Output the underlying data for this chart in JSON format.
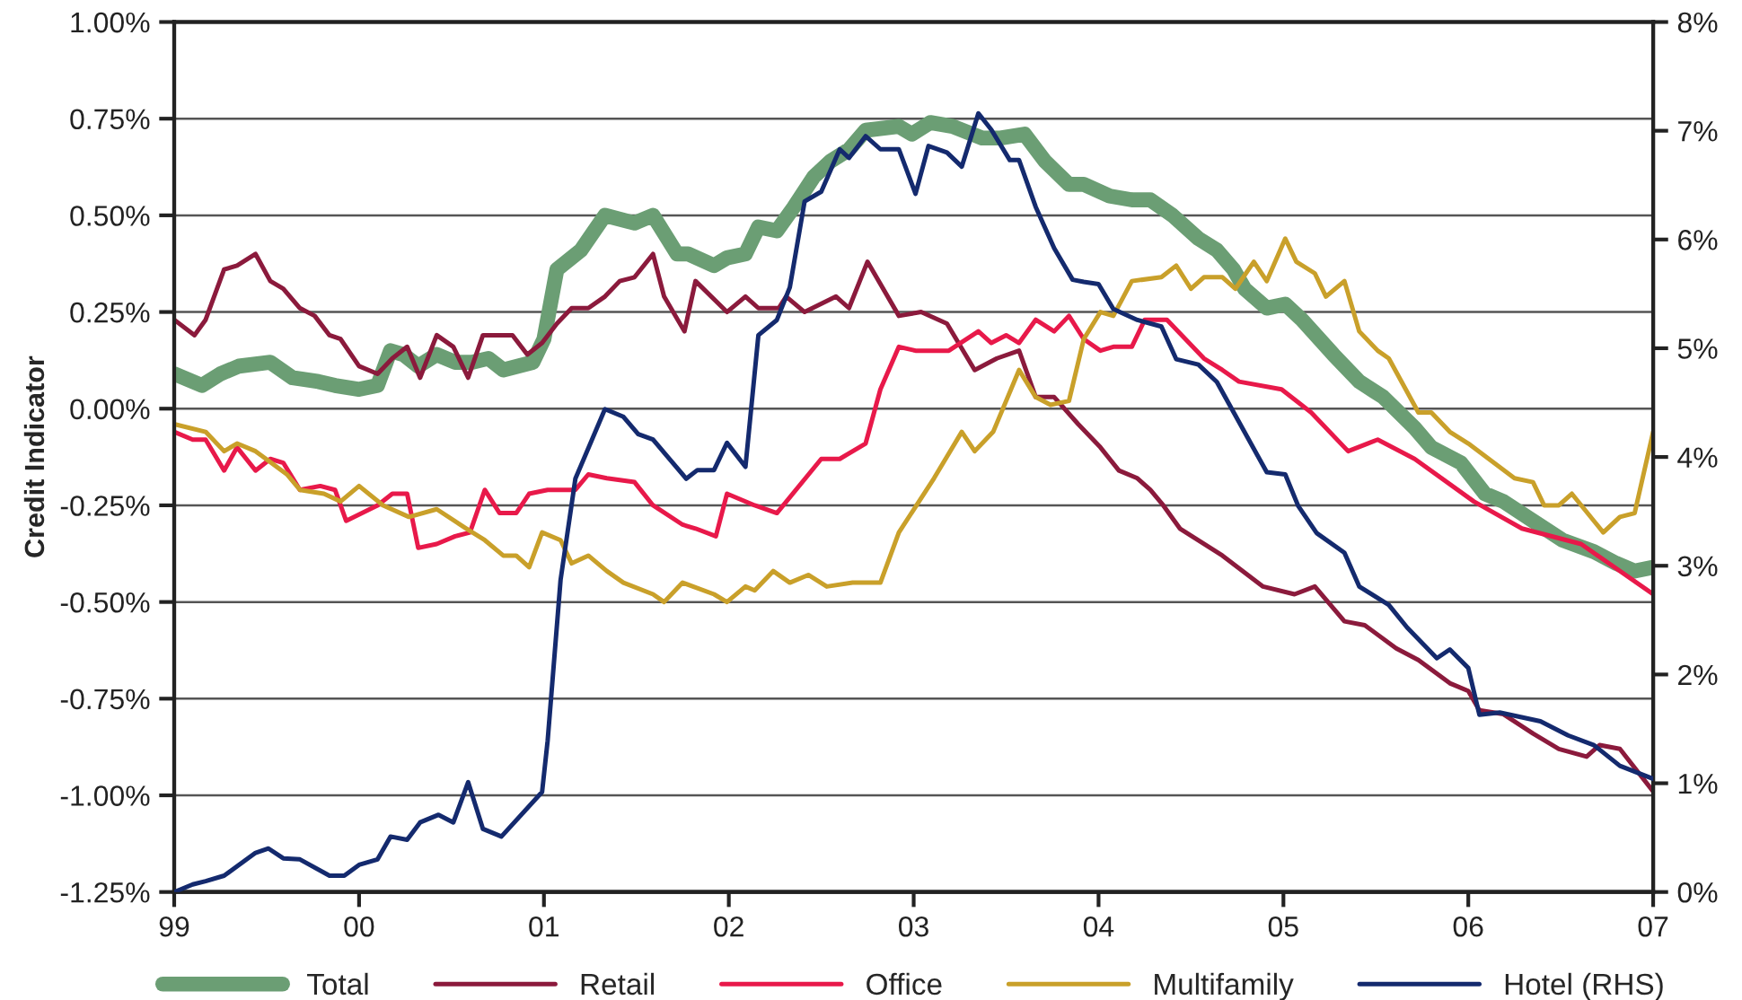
{
  "chart_data": {
    "type": "line",
    "ylabel": "Credit Indicator",
    "xlim": [
      1999,
      2007
    ],
    "xticks": [
      {
        "value": 1999,
        "label": "99"
      },
      {
        "value": 2000,
        "label": "00"
      },
      {
        "value": 2001,
        "label": "01"
      },
      {
        "value": 2002,
        "label": "02"
      },
      {
        "value": 2003,
        "label": "03"
      },
      {
        "value": 2004,
        "label": "04"
      },
      {
        "value": 2005,
        "label": "05"
      },
      {
        "value": 2006,
        "label": "06"
      },
      {
        "value": 2007,
        "label": "07"
      }
    ],
    "ylim": [
      -1.25,
      1.0
    ],
    "yticks": [
      {
        "value": -1.25,
        "label": "-1.25%"
      },
      {
        "value": -1.0,
        "label": "-1.00%"
      },
      {
        "value": -0.75,
        "label": "-0.75%"
      },
      {
        "value": -0.5,
        "label": "-0.50%"
      },
      {
        "value": -0.25,
        "label": "-0.25%"
      },
      {
        "value": 0,
        "label": "0.00%"
      },
      {
        "value": 0.25,
        "label": "0.25%"
      },
      {
        "value": 0.5,
        "label": "0.50%"
      },
      {
        "value": 0.75,
        "label": "0.75%"
      },
      {
        "value": 1.0,
        "label": "1.00%"
      }
    ],
    "y2lim": [
      0,
      8
    ],
    "y2ticks": [
      {
        "value": 0,
        "label": "0%"
      },
      {
        "value": 1,
        "label": "1%"
      },
      {
        "value": 2,
        "label": "2%"
      },
      {
        "value": 3,
        "label": "3%"
      },
      {
        "value": 4,
        "label": "4%"
      },
      {
        "value": 5,
        "label": "5%"
      },
      {
        "value": 6,
        "label": "6%"
      },
      {
        "value": 7,
        "label": "7%"
      },
      {
        "value": 8,
        "label": "8%"
      }
    ],
    "grid": "y",
    "legend": "bottom",
    "line_style": "solid",
    "marker": "none",
    "series": [
      {
        "name": "Total",
        "color": "#6b9e74",
        "x": [
          1999.0,
          1999.15,
          1999.25,
          1999.35,
          1999.52,
          1999.64,
          1999.78,
          1999.87,
          2000.0,
          2000.1,
          2000.17,
          2000.24,
          2000.32,
          2000.42,
          2000.52,
          2000.61,
          2000.7,
          2000.78,
          2000.94,
          2001.0,
          2001.07,
          2001.2,
          2001.33,
          2001.49,
          2001.59,
          2001.72,
          2001.78,
          2001.92,
          2001.99,
          2002.09,
          2002.16,
          2002.26,
          2002.35,
          2002.46,
          2002.55,
          2002.65,
          2002.74,
          2002.92,
          2002.99,
          2003.09,
          2003.21,
          2003.37,
          2003.47,
          2003.6,
          2003.71,
          2003.84,
          2003.92,
          2004.06,
          2004.18,
          2004.28,
          2004.4,
          2004.54,
          2004.64,
          2004.73,
          2004.79,
          2004.91,
          2005.01,
          2005.1,
          2005.27,
          2005.41,
          2005.54,
          2005.71,
          2005.8,
          2005.96,
          2006.09,
          2006.19,
          2006.35,
          2006.51,
          2006.68,
          2006.8,
          2006.9,
          2007.0
        ],
        "values": [
          0.09,
          0.06,
          0.09,
          0.11,
          0.12,
          0.08,
          0.07,
          0.06,
          0.05,
          0.06,
          0.15,
          0.14,
          0.11,
          0.14,
          0.12,
          0.12,
          0.13,
          0.1,
          0.12,
          0.18,
          0.36,
          0.41,
          0.5,
          0.48,
          0.5,
          0.4,
          0.4,
          0.37,
          0.39,
          0.4,
          0.47,
          0.46,
          0.52,
          0.6,
          0.64,
          0.67,
          0.72,
          0.73,
          0.71,
          0.74,
          0.73,
          0.7,
          0.7,
          0.71,
          0.64,
          0.58,
          0.58,
          0.55,
          0.54,
          0.54,
          0.5,
          0.44,
          0.41,
          0.36,
          0.31,
          0.26,
          0.27,
          0.23,
          0.14,
          0.07,
          0.03,
          -0.05,
          -0.1,
          -0.14,
          -0.22,
          -0.24,
          -0.29,
          -0.34,
          -0.37,
          -0.4,
          -0.42,
          -0.41
        ]
      },
      {
        "name": "Retail",
        "color": "#8b1a3c",
        "x": [
          1999.0,
          1999.11,
          1999.17,
          1999.27,
          1999.34,
          1999.44,
          1999.52,
          1999.59,
          1999.68,
          1999.76,
          1999.84,
          1999.9,
          2000.0,
          2000.1,
          2000.18,
          2000.26,
          2000.33,
          2000.42,
          2000.51,
          2000.59,
          2000.67,
          2000.76,
          2000.83,
          2000.91,
          2000.99,
          2001.07,
          2001.15,
          2001.24,
          2001.33,
          2001.41,
          2001.49,
          2001.59,
          2001.65,
          2001.76,
          2001.82,
          2001.99,
          2002.09,
          2002.16,
          2002.27,
          2002.31,
          2002.41,
          2002.58,
          2002.65,
          2002.75,
          2002.92,
          2003.04,
          2003.18,
          2003.33,
          2003.45,
          2003.57,
          2003.66,
          2003.76,
          2003.89,
          2004.01,
          2004.11,
          2004.21,
          2004.28,
          2004.35,
          2004.44,
          2004.67,
          2004.89,
          2005.06,
          2005.17,
          2005.33,
          2005.44,
          2005.61,
          2005.73,
          2005.9,
          2006.0,
          2006.06,
          2006.19,
          2006.35,
          2006.49,
          2006.64,
          2006.71,
          2006.82,
          2007.0
        ],
        "values": [
          0.23,
          0.19,
          0.23,
          0.36,
          0.37,
          0.4,
          0.33,
          0.31,
          0.26,
          0.24,
          0.19,
          0.18,
          0.11,
          0.09,
          0.13,
          0.16,
          0.08,
          0.19,
          0.16,
          0.08,
          0.19,
          0.19,
          0.19,
          0.14,
          0.17,
          0.22,
          0.26,
          0.26,
          0.29,
          0.33,
          0.34,
          0.4,
          0.29,
          0.2,
          0.33,
          0.25,
          0.29,
          0.26,
          0.26,
          0.29,
          0.25,
          0.29,
          0.26,
          0.38,
          0.24,
          0.25,
          0.22,
          0.1,
          0.13,
          0.15,
          0.03,
          0.03,
          -0.04,
          -0.1,
          -0.16,
          -0.18,
          -0.21,
          -0.25,
          -0.31,
          -0.38,
          -0.46,
          -0.48,
          -0.46,
          -0.55,
          -0.56,
          -0.62,
          -0.65,
          -0.71,
          -0.73,
          -0.78,
          -0.79,
          -0.84,
          -0.88,
          -0.9,
          -0.87,
          -0.88,
          -0.99
        ]
      },
      {
        "name": "Office",
        "color": "#e8194a",
        "x": [
          1999.0,
          1999.1,
          1999.17,
          1999.27,
          1999.34,
          1999.44,
          1999.52,
          1999.59,
          1999.68,
          1999.79,
          1999.87,
          1999.93,
          2000.1,
          2000.18,
          2000.26,
          2000.32,
          2000.42,
          2000.52,
          2000.6,
          2000.68,
          2000.76,
          2000.85,
          2000.92,
          2001.02,
          2001.17,
          2001.24,
          2001.34,
          2001.49,
          2001.59,
          2001.75,
          2001.82,
          2001.93,
          2001.99,
          2002.14,
          2002.26,
          2002.5,
          2002.6,
          2002.74,
          2002.82,
          2002.92,
          2003.01,
          2003.19,
          2003.35,
          2003.42,
          2003.5,
          2003.57,
          2003.66,
          2003.76,
          2003.84,
          2003.92,
          2004.01,
          2004.08,
          2004.18,
          2004.25,
          2004.37,
          2004.47,
          2004.57,
          2004.67,
          2004.76,
          2004.99,
          2005.15,
          2005.35,
          2005.51,
          2005.71,
          2006.03,
          2006.29,
          2006.61,
          2007.0
        ],
        "values": [
          -0.06,
          -0.08,
          -0.08,
          -0.16,
          -0.1,
          -0.16,
          -0.13,
          -0.14,
          -0.21,
          -0.2,
          -0.21,
          -0.29,
          -0.25,
          -0.22,
          -0.22,
          -0.36,
          -0.35,
          -0.33,
          -0.32,
          -0.21,
          -0.27,
          -0.27,
          -0.22,
          -0.21,
          -0.21,
          -0.17,
          -0.18,
          -0.19,
          -0.25,
          -0.3,
          -0.31,
          -0.33,
          -0.22,
          -0.25,
          -0.27,
          -0.13,
          -0.13,
          -0.09,
          0.05,
          0.16,
          0.15,
          0.15,
          0.2,
          0.17,
          0.19,
          0.17,
          0.23,
          0.2,
          0.24,
          0.18,
          0.15,
          0.16,
          0.16,
          0.23,
          0.23,
          0.18,
          0.13,
          0.1,
          0.07,
          0.05,
          -0.01,
          -0.11,
          -0.08,
          -0.13,
          -0.24,
          -0.31,
          -0.35,
          -0.48
        ]
      },
      {
        "name": "Multifamily",
        "color": "#c9a02a",
        "x": [
          1999.0,
          1999.17,
          1999.27,
          1999.34,
          1999.44,
          1999.61,
          1999.68,
          1999.81,
          1999.9,
          2000.0,
          2000.13,
          2000.27,
          2000.42,
          2000.58,
          2000.68,
          2000.78,
          2000.85,
          2000.92,
          2000.99,
          2001.09,
          2001.15,
          2001.24,
          2001.34,
          2001.43,
          2001.59,
          2001.65,
          2001.75,
          2001.92,
          2001.99,
          2002.09,
          2002.14,
          2002.24,
          2002.33,
          2002.43,
          2002.53,
          2002.67,
          2002.82,
          2002.92,
          2003.11,
          2003.26,
          2003.33,
          2003.43,
          2003.57,
          2003.66,
          2003.74,
          2003.84,
          2003.92,
          2004.01,
          2004.08,
          2004.18,
          2004.34,
          2004.42,
          2004.5,
          2004.57,
          2004.67,
          2004.74,
          2004.84,
          2004.91,
          2005.01,
          2005.07,
          2005.17,
          2005.23,
          2005.33,
          2005.41,
          2005.51,
          2005.57,
          2005.73,
          2005.8,
          2005.9,
          2006.0,
          2006.25,
          2006.35,
          2006.41,
          2006.49,
          2006.56,
          2006.73,
          2006.82,
          2006.9,
          2007.0
        ],
        "values": [
          -0.04,
          -0.06,
          -0.11,
          -0.09,
          -0.11,
          -0.17,
          -0.21,
          -0.22,
          -0.24,
          -0.2,
          -0.25,
          -0.28,
          -0.26,
          -0.31,
          -0.34,
          -0.38,
          -0.38,
          -0.41,
          -0.32,
          -0.34,
          -0.4,
          -0.38,
          -0.42,
          -0.45,
          -0.48,
          -0.5,
          -0.45,
          -0.48,
          -0.5,
          -0.46,
          -0.47,
          -0.42,
          -0.45,
          -0.43,
          -0.46,
          -0.45,
          -0.45,
          -0.32,
          -0.18,
          -0.06,
          -0.11,
          -0.06,
          0.1,
          0.03,
          0.01,
          0.02,
          0.18,
          0.25,
          0.24,
          0.33,
          0.34,
          0.37,
          0.31,
          0.34,
          0.34,
          0.31,
          0.38,
          0.33,
          0.44,
          0.38,
          0.35,
          0.29,
          0.33,
          0.2,
          0.15,
          0.13,
          -0.01,
          -0.01,
          -0.06,
          -0.09,
          -0.18,
          -0.19,
          -0.25,
          -0.25,
          -0.22,
          -0.32,
          -0.28,
          -0.27,
          -0.06
        ]
      },
      {
        "name": "Hotel (RHS)",
        "color": "#142a6e",
        "axis": "y2",
        "x": [
          1999.0,
          1999.1,
          1999.17,
          1999.27,
          1999.44,
          1999.51,
          1999.59,
          1999.68,
          1999.84,
          1999.92,
          2000.0,
          2000.1,
          2000.17,
          2000.26,
          2000.33,
          2000.43,
          2000.51,
          2000.59,
          2000.67,
          2000.77,
          2000.99,
          2001.02,
          2001.09,
          2001.17,
          2001.33,
          2001.43,
          2001.51,
          2001.59,
          2001.77,
          2001.83,
          2001.92,
          2001.99,
          2002.09,
          2002.16,
          2002.26,
          2002.33,
          2002.41,
          2002.5,
          2002.6,
          2002.65,
          2002.74,
          2002.82,
          2002.92,
          2003.01,
          2003.08,
          2003.18,
          2003.26,
          2003.35,
          2003.42,
          2003.52,
          2003.57,
          2003.66,
          2003.76,
          2003.86,
          2003.92,
          2004.0,
          2004.08,
          2004.21,
          2004.34,
          2004.42,
          2004.54,
          2004.64,
          2004.91,
          2005.01,
          2005.08,
          2005.18,
          2005.33,
          2005.41,
          2005.57,
          2005.67,
          2005.83,
          2005.9,
          2006.0,
          2006.06,
          2006.17,
          2006.39,
          2006.54,
          2006.68,
          2006.82,
          2007.0
        ],
        "values": [
          0.0,
          0.07,
          0.1,
          0.15,
          0.36,
          0.4,
          0.31,
          0.3,
          0.15,
          0.15,
          0.25,
          0.3,
          0.51,
          0.48,
          0.64,
          0.71,
          0.64,
          1.01,
          0.58,
          0.51,
          0.92,
          1.39,
          2.87,
          3.8,
          4.44,
          4.37,
          4.21,
          4.16,
          3.8,
          3.88,
          3.88,
          4.13,
          3.91,
          5.12,
          5.26,
          5.56,
          6.35,
          6.44,
          6.83,
          6.75,
          6.95,
          6.83,
          6.83,
          6.42,
          6.86,
          6.8,
          6.67,
          7.16,
          7.01,
          6.73,
          6.73,
          6.3,
          5.92,
          5.63,
          5.61,
          5.59,
          5.36,
          5.26,
          5.2,
          4.9,
          4.85,
          4.69,
          3.86,
          3.84,
          3.55,
          3.3,
          3.12,
          2.81,
          2.64,
          2.43,
          2.15,
          2.23,
          2.06,
          1.63,
          1.65,
          1.57,
          1.44,
          1.35,
          1.16,
          1.04
        ]
      }
    ]
  }
}
